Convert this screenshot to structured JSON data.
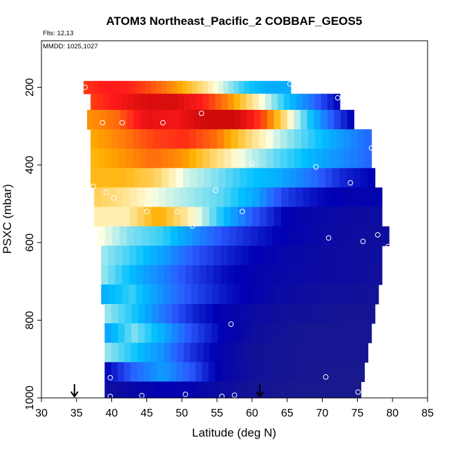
{
  "chart_data": {
    "type": "heatmap",
    "title": "ATOM3 Northeast_Pacific_2 COBBAF_GEOS5",
    "annotations": [
      "Flts: 12,13",
      "MMDD: 1025,1027"
    ],
    "xlabel": "Latitude (deg N)",
    "ylabel": "PSXC (mbar)",
    "xlim": [
      30,
      85
    ],
    "ylim": [
      1000,
      80
    ],
    "xticks": [
      30,
      35,
      40,
      45,
      50,
      55,
      60,
      65,
      70,
      75,
      80,
      85
    ],
    "yticks": [
      200,
      400,
      600,
      800,
      1000
    ],
    "grid": false,
    "legend": "none",
    "colormap": [
      "#1a1a8c",
      "#0000b4",
      "#2a5aff",
      "#00c0ff",
      "#ffffe0",
      "#ffb000",
      "#ff1a1a",
      "#b40000"
    ],
    "rows": [
      {
        "p": 200,
        "lat_min": 36.0,
        "lat_max": 65.5,
        "values": [
          0.83,
          0.86,
          0.85,
          0.8,
          0.74,
          0.65,
          0.55,
          0.45,
          0.4,
          0.4
        ]
      },
      {
        "p": 233,
        "lat_min": 37.0,
        "lat_max": 72.5,
        "values": [
          0.82,
          0.87,
          0.93,
          0.93,
          0.86,
          0.75,
          0.6,
          0.45,
          0.32,
          0.14
        ]
      },
      {
        "p": 283,
        "lat_min": 36.5,
        "lat_max": 74.5,
        "values": [
          0.74,
          0.78,
          0.9,
          0.88,
          0.95,
          0.95,
          0.8,
          0.55,
          0.34,
          0.13
        ]
      },
      {
        "p": 333,
        "lat_min": 37.0,
        "lat_max": 77.0,
        "values": [
          0.72,
          0.76,
          0.82,
          0.84,
          0.78,
          0.65,
          0.54,
          0.46,
          0.38,
          0.3
        ]
      },
      {
        "p": 383,
        "lat_min": 37.0,
        "lat_max": 77.0,
        "values": [
          0.7,
          0.74,
          0.78,
          0.74,
          0.64,
          0.55,
          0.48,
          0.42,
          0.36,
          0.3
        ]
      },
      {
        "p": 433,
        "lat_min": 37.0,
        "lat_max": 77.5,
        "values": [
          0.7,
          0.7,
          0.66,
          0.55,
          0.5,
          0.44,
          0.4,
          0.32,
          0.2,
          0.14
        ]
      },
      {
        "p": 483,
        "lat_min": 37.5,
        "lat_max": 78.5,
        "values": [
          0.66,
          0.62,
          0.56,
          0.52,
          0.48,
          0.4,
          0.24,
          0.16,
          0.12,
          0.12
        ]
      },
      {
        "p": 533,
        "lat_min": 37.5,
        "lat_max": 78.5,
        "values": [
          0.6,
          0.6,
          0.72,
          0.6,
          0.44,
          0.28,
          0.14,
          0.1,
          0.08,
          0.07
        ]
      },
      {
        "p": 583,
        "lat_min": 38.0,
        "lat_max": 79.5,
        "values": [
          0.58,
          0.5,
          0.46,
          0.36,
          0.26,
          0.18,
          0.12,
          0.09,
          0.07,
          0.06
        ]
      },
      {
        "p": 633,
        "lat_min": 38.5,
        "lat_max": 78.5,
        "values": [
          0.52,
          0.46,
          0.38,
          0.28,
          0.2,
          0.14,
          0.1,
          0.08,
          0.07,
          0.06
        ]
      },
      {
        "p": 683,
        "lat_min": 38.5,
        "lat_max": 78.5,
        "values": [
          0.52,
          0.42,
          0.34,
          0.24,
          0.16,
          0.12,
          0.09,
          0.08,
          0.07,
          0.05
        ]
      },
      {
        "p": 733,
        "lat_min": 38.5,
        "lat_max": 78.0,
        "values": [
          0.4,
          0.46,
          0.36,
          0.26,
          0.18,
          0.12,
          0.08,
          0.06,
          0.05,
          0.04
        ]
      },
      {
        "p": 783,
        "lat_min": 39.0,
        "lat_max": 77.5,
        "values": [
          0.52,
          0.44,
          0.32,
          0.2,
          0.12,
          0.08,
          0.05,
          0.04,
          0.03,
          0.03
        ]
      },
      {
        "p": 833,
        "lat_min": 39.0,
        "lat_max": 77.0,
        "values": [
          0.38,
          0.5,
          0.4,
          0.26,
          0.14,
          0.07,
          0.04,
          0.02,
          0.02,
          0.02
        ]
      },
      {
        "p": 883,
        "lat_min": 39.0,
        "lat_max": 76.5,
        "values": [
          0.52,
          0.44,
          0.36,
          0.22,
          0.12,
          0.05,
          0.03,
          0.02,
          0.02,
          0.02
        ]
      },
      {
        "p": 933,
        "lat_min": 39.0,
        "lat_max": 76.0,
        "values": [
          0.14,
          0.3,
          0.38,
          0.28,
          0.12,
          0.06,
          0.03,
          0.02,
          0.01,
          0.01
        ]
      },
      {
        "p": 983,
        "lat_min": 39.0,
        "lat_max": 75.5,
        "values": [
          0.06,
          0.1,
          0.14,
          0.12,
          0.08,
          0.04,
          0.02,
          0.01,
          0.01,
          0.0
        ]
      }
    ],
    "points": [
      [
        36.2,
        200
      ],
      [
        38.7,
        291
      ],
      [
        41.5,
        291
      ],
      [
        47.3,
        291
      ],
      [
        52.8,
        267
      ],
      [
        65.4,
        191
      ],
      [
        72.2,
        227
      ],
      [
        77.0,
        356
      ],
      [
        60.0,
        396
      ],
      [
        69.1,
        405
      ],
      [
        74.0,
        446
      ],
      [
        37.4,
        455
      ],
      [
        39.2,
        470
      ],
      [
        40.3,
        485
      ],
      [
        54.8,
        465
      ],
      [
        49.4,
        520
      ],
      [
        58.6,
        520
      ],
      [
        45.0,
        520
      ],
      [
        51.5,
        557
      ],
      [
        38.5,
        598
      ],
      [
        70.9,
        588
      ],
      [
        75.8,
        597
      ],
      [
        77.9,
        580
      ],
      [
        79.4,
        610
      ],
      [
        57.0,
        810
      ],
      [
        39.8,
        948
      ],
      [
        70.5,
        946
      ],
      [
        39.8,
        996
      ],
      [
        44.3,
        994
      ],
      [
        50.5,
        991
      ],
      [
        55.7,
        996
      ],
      [
        57.5,
        993
      ],
      [
        75.1,
        985
      ]
    ],
    "arrows": [
      34.7,
      61.1
    ]
  }
}
